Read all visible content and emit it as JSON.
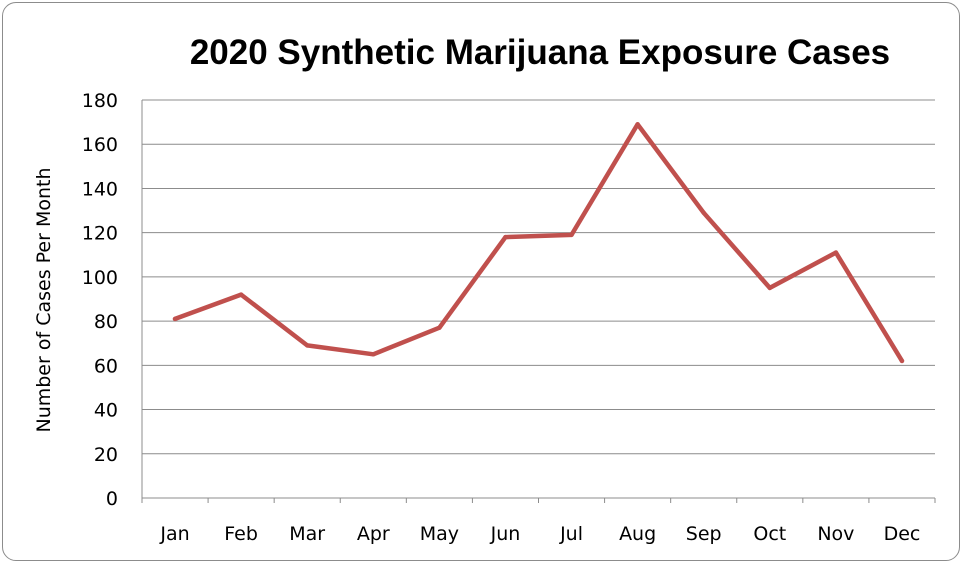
{
  "chart_data": {
    "type": "line",
    "title": "2020 Synthetic Marijuana Exposure Cases",
    "xlabel": "",
    "ylabel": "Number of Cases Per Month",
    "categories": [
      "Jan",
      "Feb",
      "Mar",
      "Apr",
      "May",
      "Jun",
      "Jul",
      "Aug",
      "Sep",
      "Oct",
      "Nov",
      "Dec"
    ],
    "series": [
      {
        "values": [
          81,
          92,
          69,
          65,
          77,
          118,
          119,
          169,
          129,
          95,
          111,
          62
        ],
        "color": "#c0504d"
      }
    ],
    "ylim": [
      0,
      180
    ],
    "yticks": [
      "0",
      "20",
      "40",
      "60",
      "80",
      "100",
      "120",
      "140",
      "160",
      "180"
    ],
    "grid": true,
    "legend": "none"
  }
}
